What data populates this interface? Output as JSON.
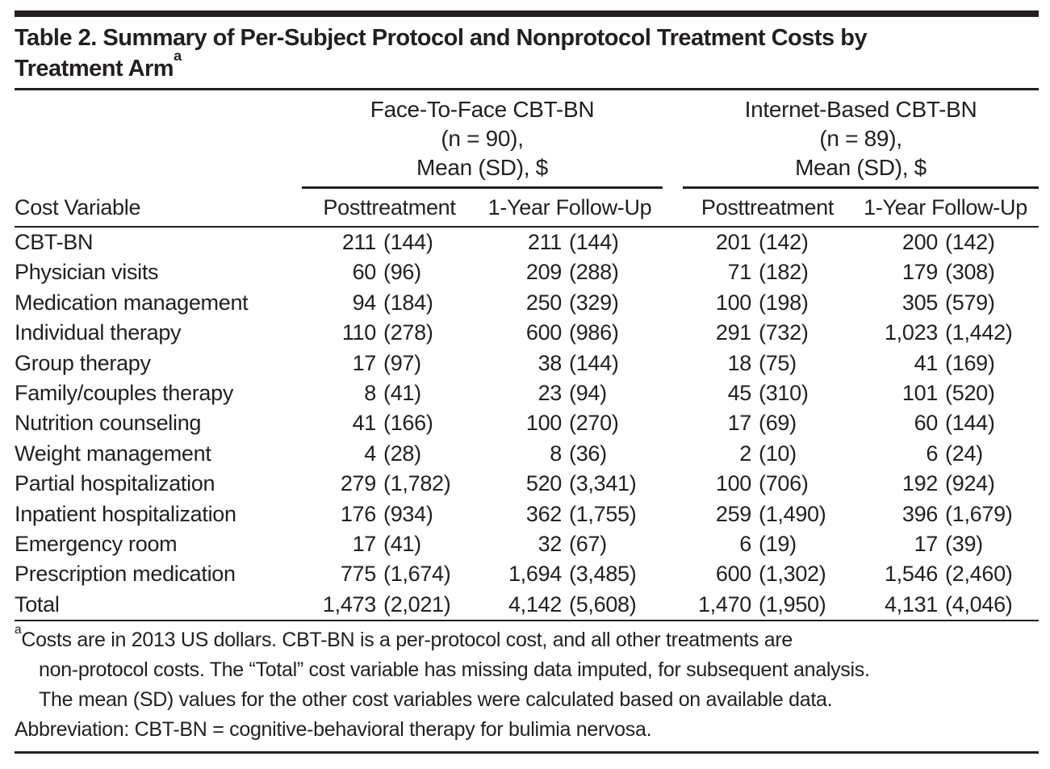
{
  "colors": {
    "background": "#ffffff",
    "text": "#231f20",
    "rule": "#231f20"
  },
  "title": {
    "lines": [
      "Table 2. Summary of Per-Subject Protocol and Nonprotocol Treatment Costs by",
      "Treatment Arm"
    ],
    "marker": "a"
  },
  "table": {
    "corner_label": "Cost Variable",
    "groups": [
      {
        "name": "Face-To-Face CBT-BN",
        "n_line": "(n = 90),",
        "unit_line": "Mean (SD), $",
        "subcolumns": [
          "Posttreatment",
          "1-Year Follow-Up"
        ]
      },
      {
        "name": "Internet-Based CBT-BN",
        "n_line": "(n = 89),",
        "unit_line": "Mean (SD), $",
        "subcolumns": [
          "Posttreatment",
          "1-Year Follow-Up"
        ]
      }
    ],
    "rows": [
      {
        "label": "CBT-BN",
        "values": [
          {
            "mean": "211",
            "sd": "(144)"
          },
          {
            "mean": "211",
            "sd": "(144)"
          },
          {
            "mean": "201",
            "sd": "(142)"
          },
          {
            "mean": "200",
            "sd": "(142)"
          }
        ]
      },
      {
        "label": "Physician visits",
        "values": [
          {
            "mean": "60",
            "sd": "(96)"
          },
          {
            "mean": "209",
            "sd": "(288)"
          },
          {
            "mean": "71",
            "sd": "(182)"
          },
          {
            "mean": "179",
            "sd": "(308)"
          }
        ]
      },
      {
        "label": "Medication management",
        "values": [
          {
            "mean": "94",
            "sd": "(184)"
          },
          {
            "mean": "250",
            "sd": "(329)"
          },
          {
            "mean": "100",
            "sd": "(198)"
          },
          {
            "mean": "305",
            "sd": "(579)"
          }
        ]
      },
      {
        "label": "Individual therapy",
        "values": [
          {
            "mean": "110",
            "sd": "(278)"
          },
          {
            "mean": "600",
            "sd": "(986)"
          },
          {
            "mean": "291",
            "sd": "(732)"
          },
          {
            "mean": "1,023",
            "sd": "(1,442)"
          }
        ]
      },
      {
        "label": "Group therapy",
        "values": [
          {
            "mean": "17",
            "sd": "(97)"
          },
          {
            "mean": "38",
            "sd": "(144)"
          },
          {
            "mean": "18",
            "sd": "(75)"
          },
          {
            "mean": "41",
            "sd": "(169)"
          }
        ]
      },
      {
        "label": "Family/couples therapy",
        "values": [
          {
            "mean": "8",
            "sd": "(41)"
          },
          {
            "mean": "23",
            "sd": "(94)"
          },
          {
            "mean": "45",
            "sd": "(310)"
          },
          {
            "mean": "101",
            "sd": "(520)"
          }
        ]
      },
      {
        "label": "Nutrition counseling",
        "values": [
          {
            "mean": "41",
            "sd": "(166)"
          },
          {
            "mean": "100",
            "sd": "(270)"
          },
          {
            "mean": "17",
            "sd": "(69)"
          },
          {
            "mean": "60",
            "sd": "(144)"
          }
        ]
      },
      {
        "label": "Weight management",
        "values": [
          {
            "mean": "4",
            "sd": "(28)"
          },
          {
            "mean": "8",
            "sd": "(36)"
          },
          {
            "mean": "2",
            "sd": "(10)"
          },
          {
            "mean": "6",
            "sd": "(24)"
          }
        ]
      },
      {
        "label": "Partial hospitalization",
        "values": [
          {
            "mean": "279",
            "sd": "(1,782)"
          },
          {
            "mean": "520",
            "sd": "(3,341)"
          },
          {
            "mean": "100",
            "sd": "(706)"
          },
          {
            "mean": "192",
            "sd": "(924)"
          }
        ]
      },
      {
        "label": "Inpatient hospitalization",
        "values": [
          {
            "mean": "176",
            "sd": "(934)"
          },
          {
            "mean": "362",
            "sd": "(1,755)"
          },
          {
            "mean": "259",
            "sd": "(1,490)"
          },
          {
            "mean": "396",
            "sd": "(1,679)"
          }
        ]
      },
      {
        "label": "Emergency room",
        "values": [
          {
            "mean": "17",
            "sd": "(41)"
          },
          {
            "mean": "32",
            "sd": "(67)"
          },
          {
            "mean": "6",
            "sd": "(19)"
          },
          {
            "mean": "17",
            "sd": "(39)"
          }
        ]
      },
      {
        "label": "Prescription medication",
        "values": [
          {
            "mean": "775",
            "sd": "(1,674)"
          },
          {
            "mean": "1,694",
            "sd": "(3,485)"
          },
          {
            "mean": "600",
            "sd": "(1,302)"
          },
          {
            "mean": "1,546",
            "sd": "(2,460)"
          }
        ]
      },
      {
        "label": "Total",
        "values": [
          {
            "mean": "1,473",
            "sd": "(2,021)"
          },
          {
            "mean": "4,142",
            "sd": "(5,608)"
          },
          {
            "mean": "1,470",
            "sd": "(1,950)"
          },
          {
            "mean": "4,131",
            "sd": "(4,046)"
          }
        ]
      }
    ]
  },
  "footnote": {
    "marker": "a",
    "lines": [
      "Costs are in 2013 US dollars. CBT-BN is a per-protocol cost, and all other treatments are",
      "non-protocol costs. The “Total” cost variable has missing data imputed, for subsequent analysis.",
      "The mean (SD) values for the other cost variables were calculated based on available data.",
      "Abbreviation: CBT-BN = cognitive-behavioral therapy for bulimia nervosa."
    ]
  }
}
